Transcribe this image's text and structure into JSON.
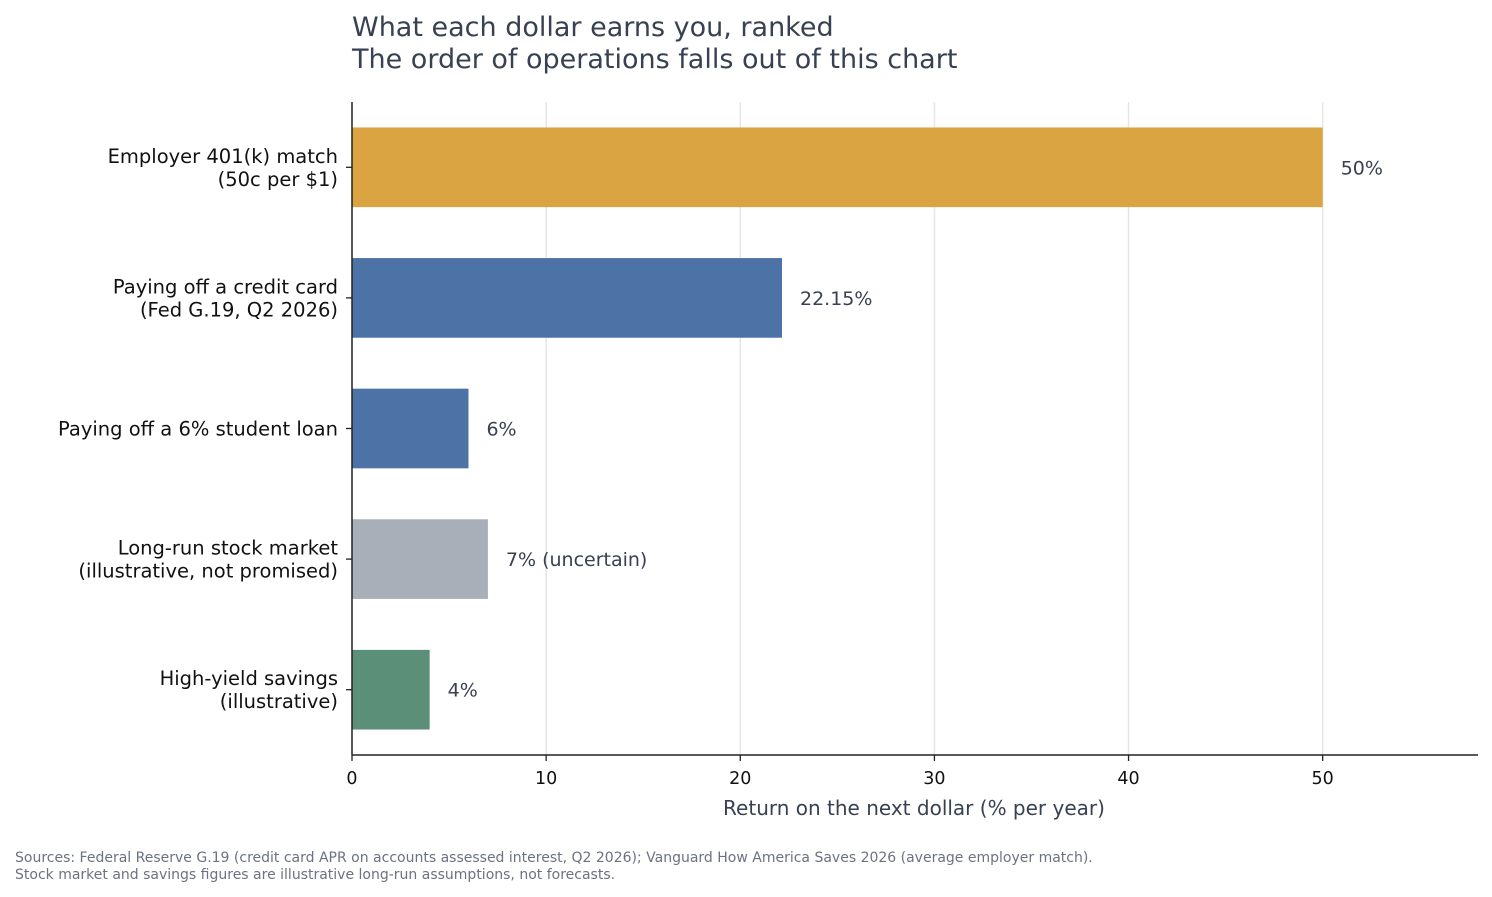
{
  "chart_data": {
    "type": "bar",
    "orientation": "horizontal",
    "title": "What each dollar earns you, ranked",
    "subtitle": "The order of operations falls out of this chart",
    "xlabel": "Return on the next dollar (% per year)",
    "ylabel": "",
    "xlim": [
      0,
      58
    ],
    "xticks": [
      0,
      10,
      20,
      30,
      40,
      50
    ],
    "grid": "vertical",
    "categories": [
      [
        "Employer 401(k) match",
        "(50c per $1)"
      ],
      [
        "Paying off a credit card",
        "(Fed G.19, Q2 2026)"
      ],
      [
        "Paying off a 6% student loan"
      ],
      [
        "Long-run stock market",
        "(illustrative, not promised)"
      ],
      [
        "High-yield savings",
        "(illustrative)"
      ]
    ],
    "values": [
      50,
      22.15,
      6,
      7,
      4
    ],
    "value_labels": [
      "50%",
      "22.15%",
      "6%",
      "7%  (uncertain)",
      "4%"
    ],
    "colors": [
      "#d9a441",
      "#4c72a6",
      "#4c72a6",
      "#a9afb8",
      "#5b8f78"
    ]
  },
  "footnote": [
    "Sources: Federal Reserve G.19 (credit card APR on accounts assessed interest, Q2 2026); Vanguard How America Saves 2026 (average employer match).",
    "Stock market and savings figures are illustrative long-run assumptions, not forecasts."
  ]
}
